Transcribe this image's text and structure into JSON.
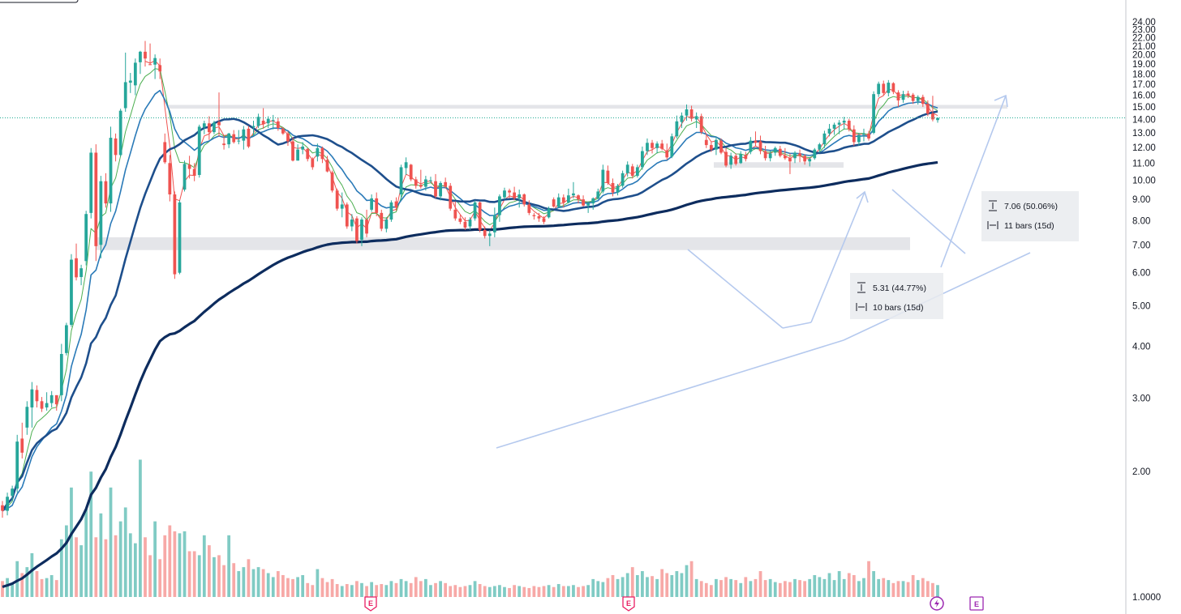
{
  "chart_data": {
    "type": "candlestick",
    "y_axis": {
      "scale": "log",
      "range": [
        0.95,
        25.5
      ],
      "ticks": [
        "24.00",
        "23.00",
        "22.00",
        "21.00",
        "20.00",
        "19.00",
        "18.00",
        "17.00",
        "16.00",
        "15.00",
        "14.00",
        "13.00",
        "12.00",
        "11.00",
        "10.00",
        "9.00",
        "8.00",
        "7.00",
        "6.00",
        "5.00",
        "4.00",
        "3.00",
        "2.00",
        "1.0000"
      ],
      "position": "right"
    },
    "last_price": {
      "value": 14.12,
      "label": "14.12"
    },
    "colors": {
      "up": "#26a69a",
      "down": "#ef5350",
      "up_volume": "#80cbc4",
      "down_volume": "#f7a9a7",
      "ema_fast": "#ef5350",
      "ema_mid": "#4caf50",
      "sma_blue": "#2a7ab8",
      "sma_dark": "#1e4f8c",
      "sma_slow": "#0d2c5e",
      "zone": "#dfe1e5",
      "drawing": "#b5c9ee",
      "price_tag": "#22ab94",
      "events": "#e91e63",
      "events_alt": "#9c27b0"
    },
    "candles": [
      [
        1.66,
        1.7,
        1.55,
        1.61
      ],
      [
        1.61,
        1.78,
        1.57,
        1.74
      ],
      [
        1.75,
        1.85,
        1.7,
        1.82
      ],
      [
        1.82,
        2.45,
        1.78,
        2.36
      ],
      [
        2.4,
        2.62,
        2.15,
        2.22
      ],
      [
        2.55,
        2.95,
        2.45,
        2.86
      ],
      [
        2.85,
        3.28,
        2.55,
        3.15
      ],
      [
        3.14,
        3.22,
        2.85,
        2.95
      ],
      [
        2.95,
        3.02,
        2.78,
        2.83
      ],
      [
        2.85,
        3.1,
        2.8,
        2.92
      ],
      [
        2.92,
        3.12,
        2.85,
        3.05
      ],
      [
        3.05,
        3.05,
        2.8,
        2.9
      ],
      [
        3.05,
        4.05,
        2.95,
        3.83
      ],
      [
        3.85,
        4.55,
        3.8,
        4.49
      ],
      [
        4.5,
        6.65,
        4.45,
        6.45
      ],
      [
        6.5,
        7.05,
        5.75,
        5.85
      ],
      [
        5.86,
        6.27,
        5.6,
        6.15
      ],
      [
        6.4,
        8.45,
        6.25,
        8.3
      ],
      [
        8.35,
        11.95,
        8.1,
        11.65
      ],
      [
        11.65,
        12.2,
        6.4,
        6.95
      ],
      [
        7.0,
        10.25,
        6.5,
        9.95
      ],
      [
        9.95,
        10.4,
        8.6,
        8.8
      ],
      [
        8.8,
        13.45,
        8.4,
        12.65
      ],
      [
        12.6,
        12.95,
        11.1,
        11.5
      ],
      [
        11.5,
        14.85,
        11.4,
        14.69
      ],
      [
        14.9,
        20.25,
        14.6,
        17.2
      ],
      [
        17.15,
        18.1,
        16.2,
        17.35
      ],
      [
        16.9,
        19.6,
        16.0,
        19.15
      ],
      [
        19.2,
        20.45,
        18.0,
        20.35
      ],
      [
        20.35,
        21.6,
        18.75,
        19.6
      ],
      [
        19.0,
        21.3,
        19.0,
        18.9
      ],
      [
        18.95,
        20.05,
        17.5,
        19.65
      ],
      [
        18.9,
        19.6,
        17.5,
        18.25
      ],
      [
        12.35,
        12.95,
        10.95,
        11.05
      ],
      [
        11.0,
        11.5,
        8.9,
        9.25
      ],
      [
        9.25,
        9.4,
        5.8,
        5.95
      ],
      [
        6.0,
        8.95,
        5.95,
        8.85
      ],
      [
        9.5,
        11.15,
        9.4,
        10.95
      ],
      [
        10.9,
        11.45,
        10.1,
        10.65
      ],
      [
        10.65,
        11.0,
        9.95,
        10.25
      ],
      [
        10.3,
        13.6,
        10.15,
        13.45
      ],
      [
        13.4,
        13.9,
        12.9,
        13.7
      ],
      [
        13.7,
        14.25,
        12.5,
        13.05
      ],
      [
        13.05,
        13.9,
        12.9,
        13.75
      ],
      [
        13.8,
        16.25,
        12.75,
        13.55
      ],
      [
        12.25,
        12.85,
        11.85,
        12.15
      ],
      [
        12.2,
        13.0,
        11.95,
        12.95
      ],
      [
        12.9,
        13.2,
        12.25,
        12.35
      ],
      [
        12.4,
        13.2,
        12.2,
        12.45
      ],
      [
        12.45,
        13.5,
        11.85,
        13.25
      ],
      [
        13.3,
        13.5,
        11.95,
        12.05
      ],
      [
        13.4,
        13.9,
        12.8,
        13.5
      ],
      [
        13.5,
        14.45,
        13.35,
        14.2
      ],
      [
        13.9,
        14.9,
        13.3,
        13.65
      ],
      [
        13.7,
        14.25,
        13.35,
        14.05
      ],
      [
        13.9,
        14.35,
        13.25,
        13.95
      ],
      [
        13.85,
        14.15,
        13.15,
        13.35
      ],
      [
        13.3,
        13.4,
        12.85,
        12.95
      ],
      [
        12.95,
        13.1,
        12.1,
        12.4
      ],
      [
        12.4,
        12.7,
        11.1,
        11.15
      ],
      [
        11.15,
        12.2,
        11.15,
        11.85
      ],
      [
        11.85,
        12.35,
        11.55,
        12.05
      ],
      [
        11.9,
        11.95,
        11.1,
        11.25
      ],
      [
        11.25,
        11.35,
        10.6,
        10.75
      ],
      [
        11.4,
        12.25,
        11.1,
        11.95
      ],
      [
        11.95,
        12.05,
        11.0,
        11.25
      ],
      [
        11.2,
        11.45,
        10.45,
        10.5
      ],
      [
        10.45,
        10.55,
        9.35,
        9.45
      ],
      [
        9.45,
        9.55,
        8.45,
        8.55
      ],
      [
        8.55,
        9.35,
        8.15,
        8.75
      ],
      [
        8.75,
        8.85,
        7.65,
        7.75
      ],
      [
        7.75,
        8.3,
        7.55,
        8.05
      ],
      [
        8.1,
        8.2,
        7.05,
        7.15
      ],
      [
        7.2,
        8.15,
        6.95,
        8.05
      ],
      [
        8.05,
        8.5,
        7.3,
        7.45
      ],
      [
        8.5,
        9.25,
        8.4,
        9.05
      ],
      [
        9.05,
        9.35,
        8.2,
        8.35
      ],
      [
        8.35,
        8.5,
        7.55,
        7.65
      ],
      [
        7.65,
        8.15,
        7.5,
        8.05
      ],
      [
        8.05,
        8.95,
        7.95,
        8.85
      ],
      [
        8.9,
        9.1,
        8.45,
        8.6
      ],
      [
        9.25,
        10.9,
        8.95,
        10.75
      ],
      [
        10.7,
        11.35,
        10.3,
        11.05
      ],
      [
        10.9,
        10.95,
        9.95,
        10.05
      ],
      [
        10.05,
        10.2,
        9.55,
        9.7
      ],
      [
        9.75,
        10.6,
        9.55,
        9.65
      ],
      [
        9.65,
        10.25,
        9.45,
        10.05
      ],
      [
        10.0,
        10.2,
        9.85,
        10.0
      ],
      [
        9.95,
        10.35,
        9.05,
        9.15
      ],
      [
        9.15,
        9.95,
        8.95,
        9.85
      ],
      [
        9.9,
        10.15,
        9.55,
        9.65
      ],
      [
        9.7,
        9.85,
        8.45,
        8.55
      ],
      [
        8.5,
        8.9,
        8.0,
        8.1
      ],
      [
        8.1,
        8.25,
        7.85,
        7.95
      ],
      [
        7.95,
        8.15,
        7.6,
        7.7
      ],
      [
        7.75,
        8.15,
        7.6,
        8.05
      ],
      [
        8.1,
        8.95,
        8.0,
        8.85
      ],
      [
        8.85,
        8.9,
        7.5,
        7.6
      ],
      [
        7.6,
        7.75,
        7.25,
        7.35
      ],
      [
        7.35,
        7.6,
        6.95,
        7.45
      ],
      [
        7.5,
        8.6,
        7.3,
        8.25
      ],
      [
        8.25,
        9.25,
        7.95,
        9.15
      ],
      [
        9.1,
        9.6,
        9.0,
        9.45
      ],
      [
        9.45,
        9.55,
        9.05,
        9.35
      ],
      [
        9.35,
        9.65,
        8.95,
        9.05
      ],
      [
        9.05,
        9.5,
        8.6,
        9.25
      ],
      [
        9.25,
        9.3,
        8.65,
        8.75
      ],
      [
        8.75,
        8.95,
        8.25,
        8.35
      ],
      [
        8.25,
        8.35,
        8.05,
        8.2
      ],
      [
        8.2,
        8.35,
        7.95,
        8.1
      ],
      [
        8.1,
        8.2,
        7.85,
        7.95
      ],
      [
        8.15,
        8.65,
        8.1,
        8.55
      ],
      [
        9.0,
        9.1,
        8.6,
        8.65
      ],
      [
        8.65,
        9.3,
        8.6,
        9.1
      ],
      [
        9.1,
        9.25,
        8.6,
        8.85
      ],
      [
        8.85,
        9.55,
        8.8,
        9.2
      ],
      [
        9.2,
        9.9,
        9.05,
        9.3
      ],
      [
        9.2,
        9.25,
        8.8,
        9.0
      ],
      [
        9.0,
        9.2,
        8.65,
        8.7
      ],
      [
        8.7,
        8.9,
        8.35,
        8.8
      ],
      [
        8.8,
        9.1,
        8.5,
        9.05
      ],
      [
        9.05,
        9.55,
        9.0,
        9.4
      ],
      [
        9.4,
        10.9,
        9.3,
        10.6
      ],
      [
        10.55,
        10.85,
        9.75,
        9.85
      ],
      [
        9.85,
        10.1,
        9.15,
        9.35
      ],
      [
        9.35,
        9.8,
        9.2,
        9.7
      ],
      [
        9.7,
        10.55,
        9.6,
        10.4
      ],
      [
        10.4,
        11.1,
        10.2,
        10.9
      ],
      [
        10.8,
        10.95,
        10.1,
        10.25
      ],
      [
        10.25,
        10.9,
        10.15,
        10.75
      ],
      [
        10.75,
        12.05,
        10.6,
        11.75
      ],
      [
        11.75,
        12.6,
        11.5,
        12.3
      ],
      [
        12.3,
        12.5,
        11.6,
        11.95
      ],
      [
        11.95,
        12.4,
        11.6,
        12.25
      ],
      [
        12.25,
        12.5,
        11.8,
        11.9
      ],
      [
        11.8,
        12.25,
        11.2,
        11.35
      ],
      [
        11.4,
        12.95,
        11.3,
        12.75
      ],
      [
        12.75,
        14.3,
        12.6,
        13.85
      ],
      [
        13.8,
        14.55,
        13.35,
        14.3
      ],
      [
        14.3,
        15.2,
        13.9,
        14.8
      ],
      [
        14.8,
        15.1,
        13.85,
        14.05
      ],
      [
        14.0,
        14.55,
        13.35,
        14.25
      ],
      [
        14.25,
        14.45,
        12.9,
        13.05
      ],
      [
        12.5,
        12.95,
        11.95,
        12.15
      ],
      [
        12.15,
        12.35,
        11.7,
        11.85
      ],
      [
        11.85,
        12.7,
        11.5,
        12.5
      ],
      [
        12.45,
        12.6,
        11.55,
        11.65
      ],
      [
        11.7,
        11.95,
        10.75,
        10.85
      ],
      [
        10.9,
        11.65,
        10.65,
        11.45
      ],
      [
        11.45,
        11.6,
        10.85,
        10.95
      ],
      [
        11.0,
        11.75,
        10.95,
        11.55
      ],
      [
        11.5,
        11.7,
        11.1,
        11.25
      ],
      [
        11.7,
        12.7,
        11.55,
        12.45
      ],
      [
        12.45,
        13.1,
        12.1,
        12.3
      ],
      [
        12.4,
        12.8,
        11.55,
        11.75
      ],
      [
        11.75,
        12.1,
        11.15,
        11.3
      ],
      [
        11.3,
        11.75,
        11.1,
        11.6
      ],
      [
        11.65,
        12.05,
        11.45,
        11.95
      ],
      [
        11.9,
        12.1,
        11.35,
        11.45
      ],
      [
        11.45,
        11.95,
        11.2,
        11.3
      ],
      [
        11.3,
        11.6,
        10.35,
        11.1
      ],
      [
        11.3,
        11.75,
        11.0,
        11.65
      ],
      [
        11.6,
        11.85,
        11.05,
        11.45
      ],
      [
        11.45,
        11.55,
        10.9,
        11.1
      ],
      [
        11.1,
        11.35,
        10.8,
        11.25
      ],
      [
        11.3,
        11.95,
        11.2,
        11.85
      ],
      [
        11.85,
        12.3,
        11.65,
        12.2
      ],
      [
        12.2,
        13.15,
        11.95,
        12.95
      ],
      [
        12.95,
        13.65,
        12.75,
        13.3
      ],
      [
        13.3,
        13.75,
        12.85,
        13.6
      ],
      [
        13.6,
        13.95,
        12.9,
        13.75
      ],
      [
        13.75,
        14.2,
        13.25,
        13.9
      ],
      [
        13.9,
        14.05,
        13.1,
        13.25
      ],
      [
        13.25,
        13.55,
        12.1,
        12.35
      ],
      [
        12.35,
        13.0,
        12.1,
        12.85
      ],
      [
        12.85,
        13.3,
        12.4,
        12.95
      ],
      [
        12.95,
        13.15,
        12.45,
        12.6
      ],
      [
        13.0,
        16.35,
        12.9,
        16.1
      ],
      [
        16.1,
        17.25,
        15.85,
        17.05
      ],
      [
        17.05,
        17.35,
        16.0,
        16.2
      ],
      [
        16.2,
        17.4,
        15.9,
        17.15
      ],
      [
        17.1,
        17.2,
        16.1,
        16.3
      ],
      [
        16.25,
        16.45,
        15.0,
        15.55
      ],
      [
        15.6,
        16.4,
        15.35,
        16.1
      ],
      [
        16.15,
        16.4,
        15.75,
        16.0
      ],
      [
        16.05,
        16.2,
        15.25,
        15.5
      ],
      [
        15.5,
        16.0,
        15.2,
        15.85
      ],
      [
        15.85,
        16.05,
        15.0,
        15.25
      ],
      [
        15.25,
        15.55,
        14.25,
        14.45
      ],
      [
        14.45,
        15.95,
        13.85,
        14.0
      ],
      [
        13.95,
        14.15,
        13.75,
        14.12
      ]
    ],
    "volume": [
      0.8,
      0.95,
      0.7,
      1.8,
      1.2,
      1.5,
      2.2,
      1.3,
      0.9,
      0.95,
      1.1,
      0.85,
      2.9,
      3.6,
      5.5,
      3.0,
      2.6,
      4.4,
      6.3,
      3.0,
      4.2,
      2.9,
      5.5,
      3.1,
      3.8,
      4.5,
      3.2,
      2.7,
      6.9,
      3.0,
      2.1,
      3.8,
      1.9,
      3.1,
      3.6,
      3.3,
      3.2,
      3.3,
      2.3,
      2.3,
      2.1,
      3.1,
      2.6,
      2.0,
      2.1,
      1.6,
      3.1,
      1.7,
      1.3,
      1.5,
      1.9,
      1.4,
      1.5,
      1.4,
      1.2,
      1.0,
      1.3,
      1.1,
      0.95,
      0.9,
      1.0,
      1.1,
      0.7,
      0.6,
      1.4,
      0.95,
      0.75,
      0.9,
      0.65,
      0.55,
      0.65,
      0.6,
      0.8,
      0.7,
      0.55,
      0.75,
      0.6,
      0.65,
      0.6,
      0.8,
      0.7,
      0.9,
      0.8,
      0.7,
      1.0,
      0.8,
      0.9,
      0.6,
      0.7,
      0.8,
      0.7,
      0.55,
      0.6,
      0.5,
      0.55,
      0.6,
      0.8,
      0.65,
      0.55,
      0.5,
      0.55,
      0.6,
      0.5,
      0.45,
      0.6,
      0.55,
      0.5,
      0.45,
      0.55,
      0.5,
      0.55,
      0.6,
      0.5,
      0.65,
      0.55,
      0.55,
      0.6,
      0.5,
      0.55,
      0.6,
      0.9,
      0.8,
      0.75,
      0.95,
      1.1,
      0.9,
      1.0,
      1.2,
      1.5,
      1.1,
      1.3,
      1.0,
      1.05,
      0.9,
      1.4,
      1.2,
      1.1,
      1.3,
      1.2,
      1.6,
      1.8,
      0.9,
      0.8,
      0.7,
      0.6,
      0.9,
      0.85,
      1.0,
      0.9,
      0.85,
      0.7,
      1.0,
      0.8,
      0.9,
      1.3,
      0.85,
      0.9,
      0.75,
      0.7,
      0.8,
      0.75,
      0.9,
      0.85,
      0.8,
      0.9,
      1.1,
      1.0,
      0.9,
      1.2,
      0.85,
      1.3,
      0.9,
      1.2,
      1.1,
      0.8,
      0.95,
      1.8,
      1.3,
      0.9,
      0.95,
      0.85,
      0.7,
      0.8,
      0.8,
      0.75,
      1.1,
      0.85,
      0.95,
      0.8,
      0.7,
      0.6,
      0.9,
      0.55
    ],
    "moving_averages": [
      {
        "name": "",
        "color": "#ef5350",
        "style": "fast"
      },
      {
        "name": "",
        "color": "#4caf50",
        "style": "short"
      },
      {
        "name": "",
        "color": "#2a7ab8",
        "style": "medium"
      },
      {
        "name": "",
        "color": "#1e4f8c",
        "style": "medium-long"
      },
      {
        "name": "",
        "color": "#0d2c5e",
        "style": "long"
      }
    ],
    "support_zones": [
      {
        "from": 14.86,
        "to": 15.17
      },
      {
        "from": 10.72,
        "to": 11.05
      },
      {
        "from": 6.8,
        "to": 7.3
      }
    ],
    "annotations": [
      {
        "type": "price-range",
        "line1": "7.06 (50.06%)",
        "line2": "11 bars (15d)"
      },
      {
        "type": "price-range",
        "line1": "5.31 (44.77%)",
        "line2": "10 bars (15d)"
      }
    ],
    "event_markers": [
      {
        "label": "E",
        "kind": "earnings"
      },
      {
        "label": "E",
        "kind": "earnings"
      },
      {
        "label": "",
        "kind": "split-lightning"
      },
      {
        "label": "E",
        "kind": "earnings-upcoming"
      }
    ],
    "grid": false,
    "legend": "none"
  }
}
